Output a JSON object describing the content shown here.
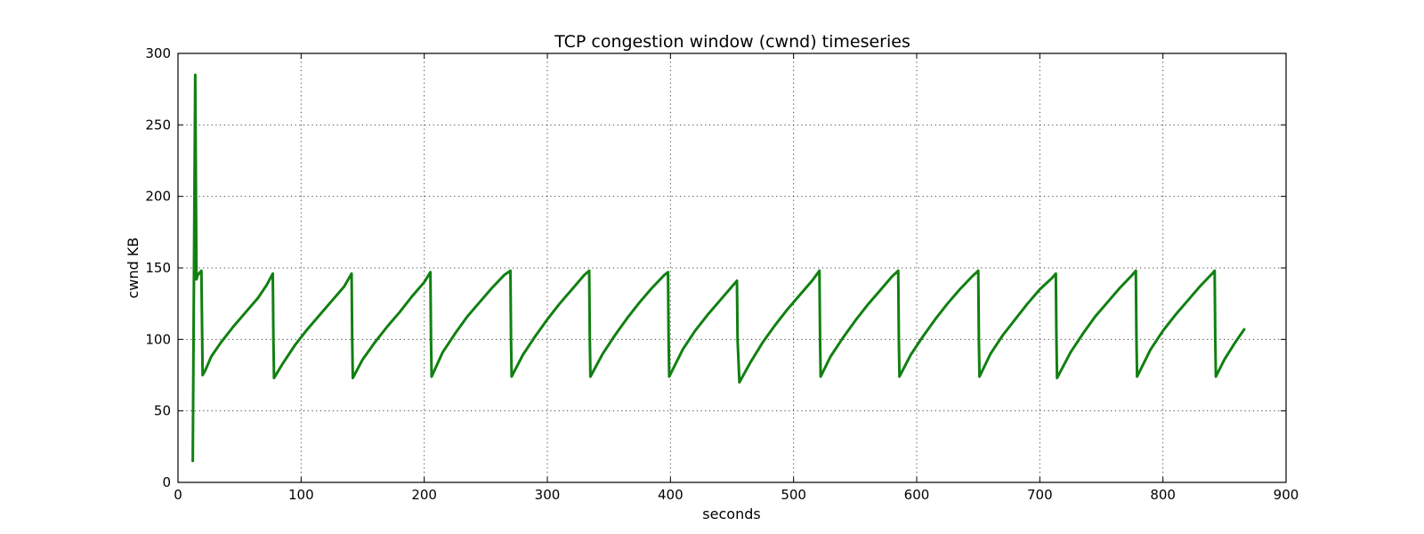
{
  "chart_data": {
    "type": "line",
    "title": "TCP congestion window (cwnd) timeseries",
    "xlabel": "seconds",
    "ylabel": "cwnd KB",
    "xlim": [
      0,
      900
    ],
    "ylim": [
      0,
      300
    ],
    "xticks": [
      0,
      100,
      200,
      300,
      400,
      500,
      600,
      700,
      800,
      900
    ],
    "yticks": [
      0,
      50,
      100,
      150,
      200,
      250,
      300
    ],
    "grid": true,
    "legend": "none",
    "color": "#118011",
    "series": [
      {
        "x": [
          12,
          14,
          15,
          16,
          19,
          20,
          22,
          27,
          35,
          45,
          55,
          65,
          72,
          77,
          77.5,
          78,
          85,
          95,
          105,
          115,
          125,
          135,
          141,
          141.5,
          142,
          150,
          160,
          170,
          180,
          190,
          200,
          205,
          205.5,
          206,
          215,
          225,
          235,
          245,
          255,
          265,
          270,
          270.5,
          271,
          280,
          290,
          300,
          310,
          320,
          330,
          334,
          334.5,
          335,
          345,
          355,
          365,
          375,
          385,
          395,
          398,
          398.5,
          399,
          410,
          420,
          430,
          440,
          450,
          454,
          454.5,
          456,
          465,
          475,
          485,
          495,
          505,
          515,
          521,
          521.5,
          522,
          530,
          540,
          550,
          560,
          570,
          580,
          585,
          585.5,
          586,
          595,
          605,
          615,
          625,
          635,
          645,
          650,
          650.5,
          651,
          660,
          670,
          680,
          690,
          700,
          710,
          713,
          713.5,
          714,
          725,
          735,
          745,
          755,
          765,
          775,
          778,
          778.5,
          779,
          790,
          800,
          810,
          820,
          830,
          840,
          842,
          842.5,
          843,
          850,
          858,
          866
        ],
        "y": [
          15,
          285,
          142,
          145,
          148,
          75,
          78,
          88,
          98,
          109,
          119,
          129,
          138,
          146,
          100,
          73,
          83,
          96,
          107,
          117,
          127,
          137,
          146,
          100,
          73,
          86,
          98,
          109,
          119,
          130,
          140,
          147,
          100,
          74,
          91,
          104,
          116,
          126,
          136,
          145,
          148,
          100,
          74,
          89,
          102,
          114,
          125,
          135,
          145,
          148,
          100,
          74,
          90,
          103,
          115,
          126,
          136,
          145,
          147,
          100,
          74,
          93,
          106,
          117,
          127,
          137,
          141,
          100,
          70,
          84,
          98,
          110,
          121,
          131,
          141,
          148,
          100,
          74,
          88,
          101,
          113,
          124,
          134,
          144,
          148,
          100,
          74,
          89,
          102,
          114,
          125,
          135,
          144,
          148,
          100,
          74,
          90,
          103,
          114,
          125,
          135,
          143,
          146,
          100,
          73,
          91,
          104,
          116,
          126,
          136,
          145,
          148,
          100,
          74,
          93,
          106,
          117,
          127,
          137,
          146,
          148,
          100,
          74,
          86,
          97,
          107
        ]
      }
    ]
  }
}
